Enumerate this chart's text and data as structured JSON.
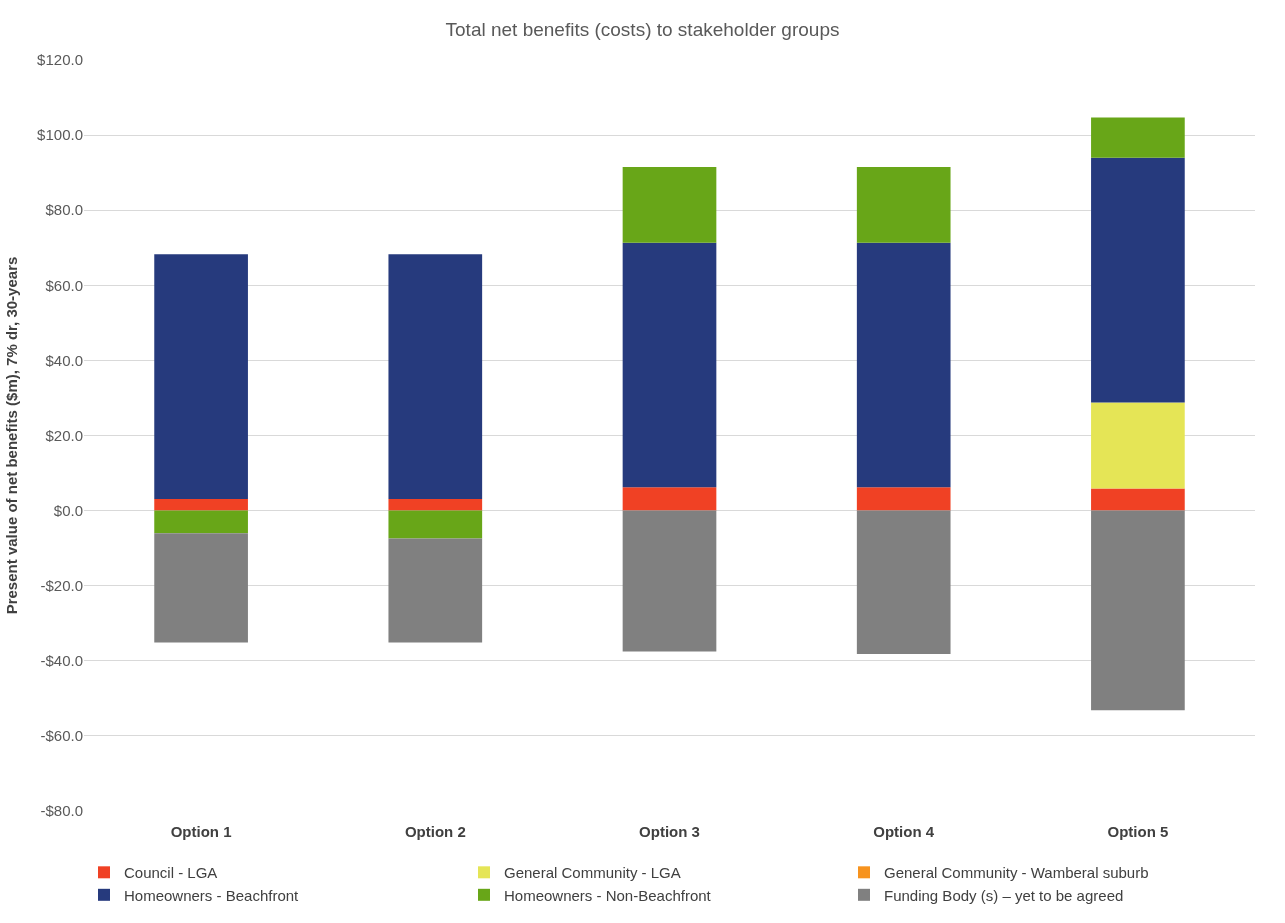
{
  "chart_data": {
    "type": "bar",
    "stacked": true,
    "title": "Total net benefits (costs) to stakeholder groups",
    "ylabel": "Present value of net benefits ($m), 7% dr, 30-years",
    "categories": [
      "Option 1",
      "Option 2",
      "Option 3",
      "Option 4",
      "Option 5"
    ],
    "series": [
      {
        "name": "Council - LGA",
        "color": "#f04124",
        "values": [
          3.1,
          3.1,
          6.2,
          6.2,
          5.9
        ]
      },
      {
        "name": "General Community - LGA",
        "color": "#e5e556",
        "values": [
          0,
          0,
          0,
          0,
          22.9
        ]
      },
      {
        "name": "General Community - Wamberal suburb",
        "color": "#f7931e",
        "values": [
          0,
          0,
          0,
          0,
          0
        ]
      },
      {
        "name": "Homeowners - Beachfront",
        "color": "#263a7d",
        "values": [
          65.2,
          65.2,
          65.1,
          65.1,
          65.2
        ]
      },
      {
        "name": "Homeowners - Non-Beachfront",
        "color": "#68a618",
        "values": [
          -6.0,
          -7.4,
          20.2,
          20.2,
          10.7
        ]
      },
      {
        "name": "Funding Body (s) – yet to be agreed",
        "color": "#808080",
        "values": [
          -29.1,
          -27.7,
          -37.5,
          -38.2,
          -53.2
        ]
      }
    ],
    "ylim": [
      -80,
      120
    ],
    "yticks": [
      {
        "value": -80,
        "label": "-$80.0"
      },
      {
        "value": -60,
        "label": "-$60.0"
      },
      {
        "value": -40,
        "label": "-$40.0"
      },
      {
        "value": -20,
        "label": "-$20.0"
      },
      {
        "value": 0,
        "label": "$0.0"
      },
      {
        "value": 20,
        "label": "$20.0"
      },
      {
        "value": 40,
        "label": "$40.0"
      },
      {
        "value": 60,
        "label": "$60.0"
      },
      {
        "value": 80,
        "label": "$80.0"
      },
      {
        "value": 100,
        "label": "$100.0"
      },
      {
        "value": 120,
        "label": "$120.0"
      }
    ],
    "grid": "y",
    "legend": "bottom"
  }
}
